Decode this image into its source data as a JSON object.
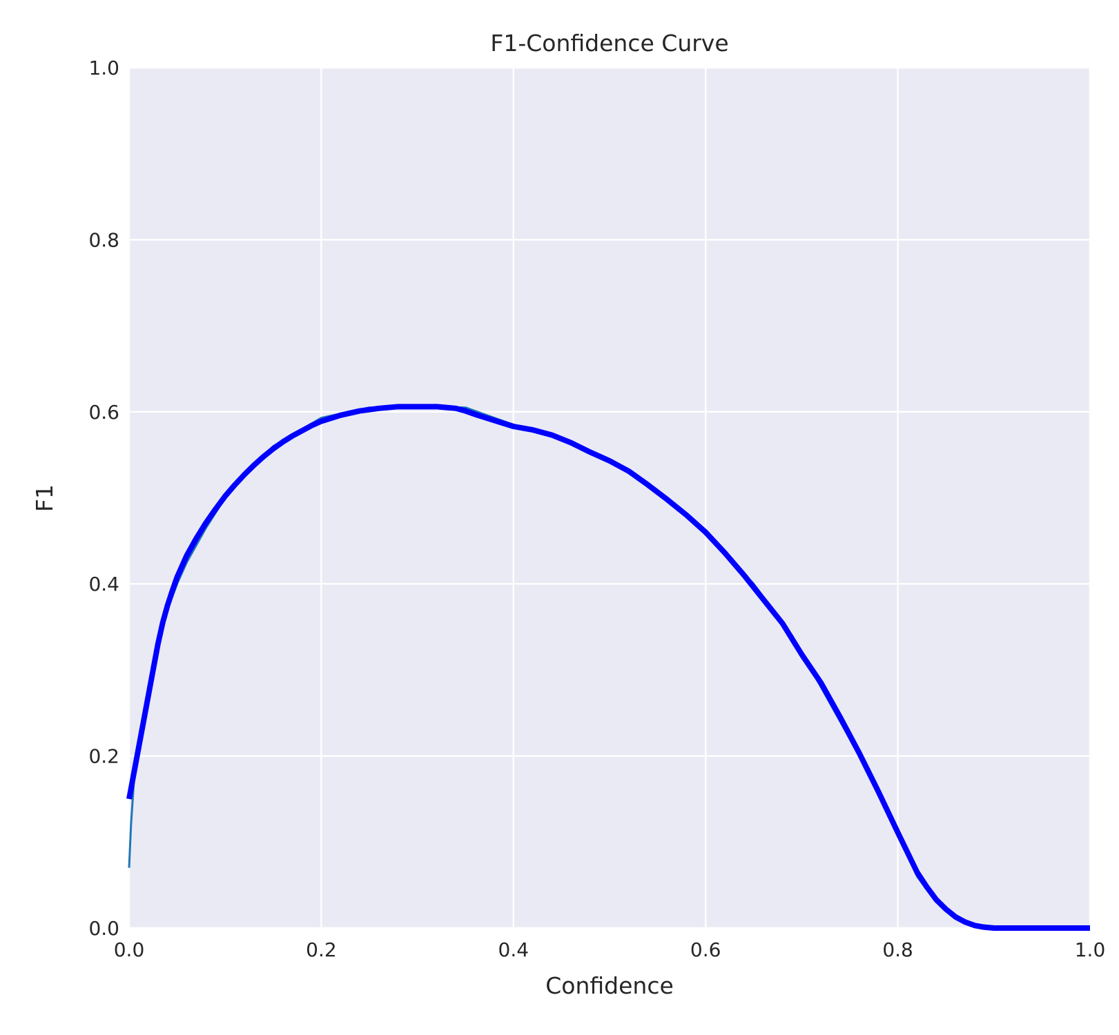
{
  "chart_data": {
    "type": "line",
    "title": "F1-Confidence Curve",
    "xlabel": "Confidence",
    "ylabel": "F1",
    "xlim": [
      0.0,
      1.0
    ],
    "ylim": [
      0.0,
      1.0
    ],
    "xticks": [
      "0.0",
      "0.2",
      "0.4",
      "0.6",
      "0.8",
      "1.0"
    ],
    "yticks": [
      "0.0",
      "0.2",
      "0.4",
      "0.6",
      "0.8",
      "1.0"
    ],
    "grid": true,
    "background_color": "#eaeaf5",
    "grid_color": "#ffffff",
    "series": [
      {
        "color": "#1f77b4",
        "line_weight": "thin",
        "x": [
          0.0,
          0.002,
          0.005,
          0.01,
          0.02,
          0.03,
          0.04,
          0.05,
          0.06,
          0.08,
          0.1,
          0.12,
          0.15,
          0.2,
          0.25,
          0.3,
          0.35,
          0.4,
          0.45,
          0.5,
          0.55,
          0.6,
          0.65,
          0.69,
          0.7,
          0.73,
          0.74,
          0.77,
          0.8,
          0.82,
          0.84,
          0.86,
          0.88,
          0.9,
          0.92,
          0.95,
          1.0
        ],
        "y": [
          0.07,
          0.12,
          0.17,
          0.22,
          0.27,
          0.33,
          0.37,
          0.4,
          0.425,
          0.465,
          0.5,
          0.525,
          0.56,
          0.593,
          0.605,
          0.606,
          0.605,
          0.585,
          0.57,
          0.545,
          0.505,
          0.46,
          0.4,
          0.34,
          0.32,
          0.26,
          0.24,
          0.18,
          0.11,
          0.06,
          0.03,
          0.012,
          0.004,
          0.002,
          0.001,
          0.0,
          0.0
        ]
      },
      {
        "color": "#0000ff",
        "line_weight": "bold",
        "x": [
          0.0,
          0.005,
          0.01,
          0.015,
          0.02,
          0.025,
          0.03,
          0.035,
          0.04,
          0.045,
          0.05,
          0.06,
          0.07,
          0.08,
          0.09,
          0.1,
          0.11,
          0.12,
          0.13,
          0.14,
          0.15,
          0.16,
          0.17,
          0.18,
          0.19,
          0.2,
          0.22,
          0.24,
          0.26,
          0.28,
          0.3,
          0.32,
          0.34,
          0.35,
          0.36,
          0.38,
          0.4,
          0.42,
          0.44,
          0.46,
          0.48,
          0.5,
          0.52,
          0.54,
          0.56,
          0.58,
          0.6,
          0.62,
          0.64,
          0.66,
          0.68,
          0.7,
          0.72,
          0.74,
          0.76,
          0.78,
          0.8,
          0.81,
          0.82,
          0.83,
          0.84,
          0.85,
          0.86,
          0.87,
          0.88,
          0.89,
          0.9,
          0.92,
          0.95,
          1.0
        ],
        "y": [
          0.15,
          0.18,
          0.21,
          0.24,
          0.27,
          0.3,
          0.33,
          0.355,
          0.375,
          0.392,
          0.408,
          0.433,
          0.453,
          0.471,
          0.487,
          0.502,
          0.515,
          0.527,
          0.538,
          0.548,
          0.557,
          0.565,
          0.572,
          0.578,
          0.584,
          0.589,
          0.596,
          0.601,
          0.604,
          0.606,
          0.606,
          0.606,
          0.604,
          0.601,
          0.597,
          0.59,
          0.583,
          0.579,
          0.573,
          0.564,
          0.553,
          0.543,
          0.531,
          0.515,
          0.498,
          0.48,
          0.46,
          0.436,
          0.41,
          0.382,
          0.354,
          0.318,
          0.285,
          0.245,
          0.203,
          0.158,
          0.111,
          0.088,
          0.065,
          0.048,
          0.033,
          0.022,
          0.013,
          0.007,
          0.003,
          0.001,
          0.0,
          0.0,
          0.0,
          0.0
        ]
      }
    ]
  }
}
